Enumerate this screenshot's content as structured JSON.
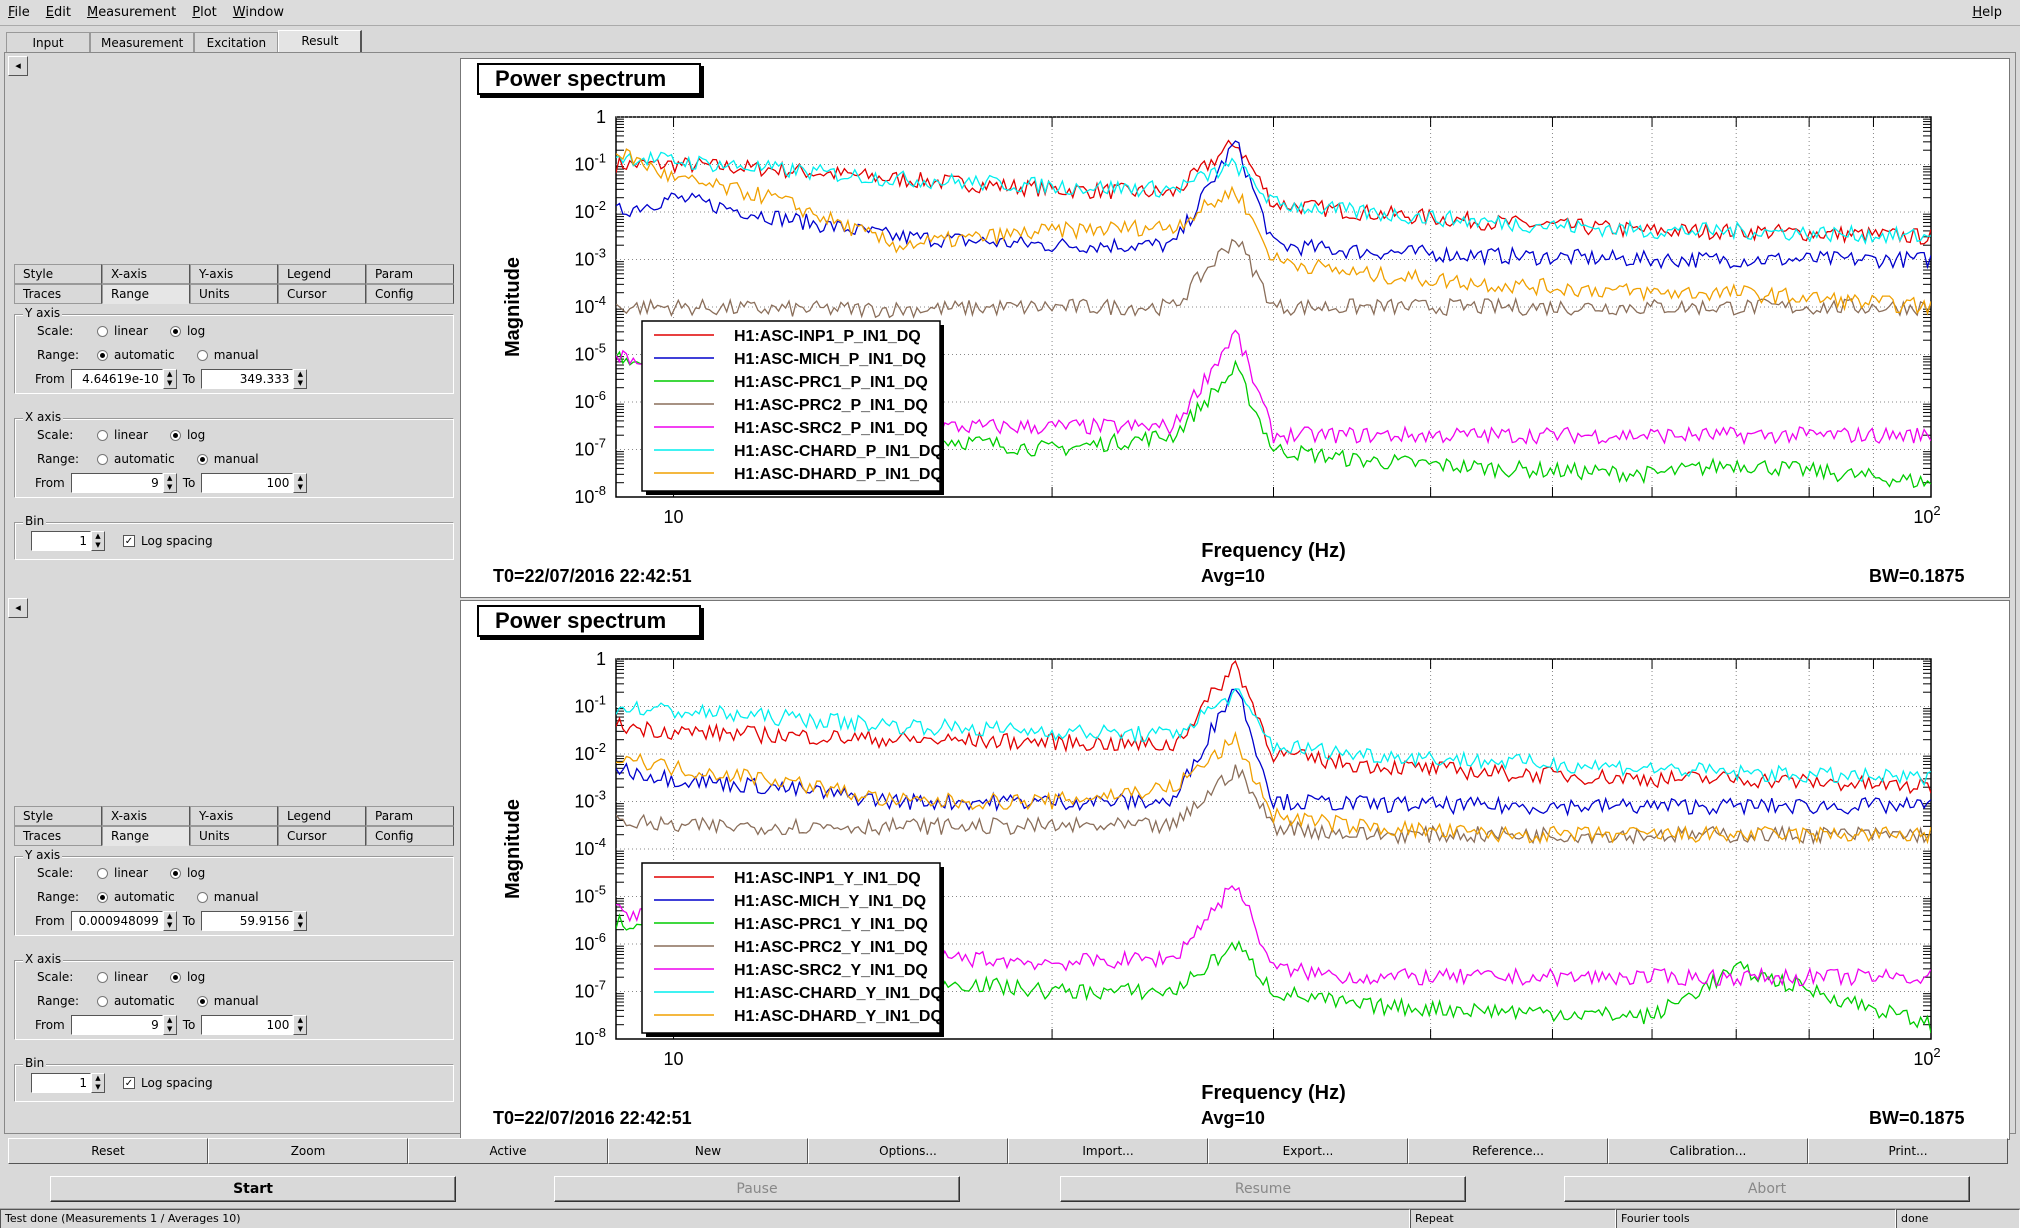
{
  "menu": {
    "file": "File",
    "edit": "Edit",
    "measurement": "Measurement",
    "plot": "Plot",
    "window": "Window",
    "help": "Help"
  },
  "main_tabs": [
    "Input",
    "Measurement",
    "Excitation",
    "Result"
  ],
  "sub_tabs_row1": [
    "Style",
    "X-axis",
    "Y-axis",
    "Legend",
    "Param"
  ],
  "sub_tabs_row2": [
    "Traces",
    "Range",
    "Units",
    "Cursor",
    "Config"
  ],
  "option_labels": {
    "y_axis": "Y axis",
    "x_axis": "X axis",
    "bin": "Bin",
    "scale": "Scale:",
    "range": "Range:",
    "from": "From",
    "to": "To",
    "linear": "linear",
    "log": "log",
    "automatic": "automatic",
    "manual": "manual",
    "log_spacing": "Log spacing"
  },
  "panels": [
    {
      "y_from": "4.64619e-10",
      "y_to": "349.333",
      "x_from": "9",
      "x_to": "100",
      "bin": "1",
      "y_scale": "log",
      "y_range": "automatic",
      "x_scale": "log",
      "x_range": "manual",
      "log_spacing": true
    },
    {
      "y_from": "0.000948099",
      "y_to": "59.9156",
      "x_from": "9",
      "x_to": "100",
      "bin": "1",
      "y_scale": "log",
      "y_range": "automatic",
      "x_scale": "log",
      "x_range": "manual",
      "log_spacing": true
    }
  ],
  "plots": [
    {
      "title": "Power spectrum",
      "xlabel": "Frequency (Hz)",
      "ylabel": "Magnitude",
      "t0": "T0=22/07/2016 22:42:51",
      "avg": "Avg=10",
      "bw": "BW=0.1875",
      "legend": [
        "H1:ASC-INP1_P_IN1_DQ",
        "H1:ASC-MICH_P_IN1_DQ",
        "H1:ASC-PRC1_P_IN1_DQ",
        "H1:ASC-PRC2_P_IN1_DQ",
        "H1:ASC-SRC2_P_IN1_DQ",
        "H1:ASC-CHARD_P_IN1_DQ",
        "H1:ASC-DHARD_P_IN1_DQ"
      ]
    },
    {
      "title": "Power spectrum",
      "xlabel": "Frequency (Hz)",
      "ylabel": "Magnitude",
      "t0": "T0=22/07/2016 22:42:51",
      "avg": "Avg=10",
      "bw": "BW=0.1875",
      "legend": [
        "H1:ASC-INP1_Y_IN1_DQ",
        "H1:ASC-MICH_Y_IN1_DQ",
        "H1:ASC-PRC1_Y_IN1_DQ",
        "H1:ASC-PRC2_Y_IN1_DQ",
        "H1:ASC-SRC2_Y_IN1_DQ",
        "H1:ASC-CHARD_Y_IN1_DQ",
        "H1:ASC-DHARD_Y_IN1_DQ"
      ]
    }
  ],
  "series_colors": [
    "#e00000",
    "#0000cc",
    "#00cc00",
    "#8a6e5a",
    "#ee00ee",
    "#00eeee",
    "#f0a000"
  ],
  "chart_data": [
    {
      "type": "line",
      "title": "Power spectrum",
      "xlabel": "Frequency (Hz)",
      "ylabel": "Magnitude",
      "x_scale": "log",
      "y_scale": "log",
      "xlim": [
        9,
        100
      ],
      "ylim": [
        1e-08,
        1
      ],
      "grid": true,
      "legend_position": "bottom-left",
      "x_ticks": [
        "10",
        "10^2"
      ],
      "y_ticks": [
        "10^-8",
        "10^-7",
        "10^-6",
        "10^-5",
        "10^-4",
        "10^-3",
        "10^-2",
        "10^-1",
        "1"
      ],
      "x": [
        9,
        10,
        12,
        15,
        20,
        25,
        28,
        30,
        35,
        45,
        60,
        70,
        100
      ],
      "series": [
        {
          "name": "H1:ASC-INP1_P_IN1_DQ",
          "values": [
            0.1,
            0.1,
            0.08,
            0.05,
            0.03,
            0.025,
            0.3,
            0.015,
            0.01,
            0.006,
            0.004,
            0.004,
            0.003
          ]
        },
        {
          "name": "H1:ASC-MICH_P_IN1_DQ",
          "values": [
            0.01,
            0.02,
            0.008,
            0.003,
            0.002,
            0.002,
            0.3,
            0.002,
            0.0015,
            0.0012,
            0.001,
            0.001,
            0.001
          ]
        },
        {
          "name": "H1:ASC-PRC1_P_IN1_DQ",
          "values": [
            1e-05,
            5e-06,
            5e-07,
            2e-07,
            1e-07,
            2e-07,
            5e-06,
            1e-07,
            6e-08,
            4e-08,
            3e-08,
            5e-08,
            2e-08
          ]
        },
        {
          "name": "H1:ASC-PRC2_P_IN1_DQ",
          "values": [
            0.0001,
            0.0001,
            9e-05,
            9e-05,
            0.0001,
            0.0001,
            0.003,
            0.0001,
            0.0001,
            0.0001,
            0.0001,
            0.0001,
            0.0001
          ]
        },
        {
          "name": "H1:ASC-SRC2_P_IN1_DQ",
          "values": [
            1e-05,
            3e-06,
            5e-07,
            3e-07,
            3e-07,
            3e-07,
            3e-05,
            2e-07,
            2e-07,
            2e-07,
            2e-07,
            2e-07,
            2e-07
          ]
        },
        {
          "name": "H1:ASC-CHARD_P_IN1_DQ",
          "values": [
            0.15,
            0.12,
            0.08,
            0.05,
            0.035,
            0.03,
            0.1,
            0.015,
            0.01,
            0.006,
            0.004,
            0.004,
            0.003
          ]
        },
        {
          "name": "H1:ASC-DHARD_P_IN1_DQ",
          "values": [
            0.2,
            0.05,
            0.02,
            0.002,
            0.004,
            0.005,
            0.03,
            0.001,
            0.0005,
            0.0003,
            0.0002,
            0.0002,
            0.0001
          ]
        }
      ]
    },
    {
      "type": "line",
      "title": "Power spectrum",
      "xlabel": "Frequency (Hz)",
      "ylabel": "Magnitude",
      "x_scale": "log",
      "y_scale": "log",
      "xlim": [
        9,
        100
      ],
      "ylim": [
        1e-08,
        1
      ],
      "grid": true,
      "legend_position": "bottom-left",
      "x_ticks": [
        "10",
        "10^2"
      ],
      "y_ticks": [
        "10^-8",
        "10^-7",
        "10^-6",
        "10^-5",
        "10^-4",
        "10^-3",
        "10^-2",
        "10^-1",
        "1"
      ],
      "x": [
        9,
        10,
        12,
        15,
        20,
        25,
        28,
        30,
        35,
        45,
        60,
        70,
        100
      ],
      "series": [
        {
          "name": "H1:ASC-INP1_Y_IN1_DQ",
          "values": [
            0.04,
            0.03,
            0.025,
            0.02,
            0.018,
            0.015,
            0.8,
            0.01,
            0.006,
            0.004,
            0.003,
            0.003,
            0.002
          ]
        },
        {
          "name": "H1:ASC-MICH_Y_IN1_DQ",
          "values": [
            0.005,
            0.003,
            0.002,
            0.001,
            0.001,
            0.001,
            0.3,
            0.001,
            0.0009,
            0.0008,
            0.0008,
            0.0008,
            0.0008
          ]
        },
        {
          "name": "H1:ASC-PRC1_Y_IN1_DQ",
          "values": [
            3e-06,
            1e-06,
            3e-07,
            2e-07,
            1e-07,
            1e-07,
            1e-06,
            1e-07,
            5e-08,
            4e-08,
            3e-08,
            3e-07,
            2e-08
          ]
        },
        {
          "name": "H1:ASC-PRC2_Y_IN1_DQ",
          "values": [
            0.0004,
            0.0003,
            0.0003,
            0.0003,
            0.0003,
            0.0003,
            0.005,
            0.0003,
            0.0002,
            0.0002,
            0.0002,
            0.0002,
            0.0002
          ]
        },
        {
          "name": "H1:ASC-SRC2_Y_IN1_DQ",
          "values": [
            5e-06,
            3e-06,
            1e-06,
            6e-07,
            4e-07,
            5e-07,
            2e-05,
            3e-07,
            2e-07,
            2e-07,
            2e-07,
            2e-07,
            2e-07
          ]
        },
        {
          "name": "H1:ASC-CHARD_Y_IN1_DQ",
          "values": [
            0.1,
            0.08,
            0.06,
            0.04,
            0.03,
            0.025,
            0.2,
            0.015,
            0.01,
            0.007,
            0.005,
            0.004,
            0.003
          ]
        },
        {
          "name": "H1:ASC-DHARD_Y_IN1_DQ",
          "values": [
            0.01,
            0.005,
            0.003,
            0.001,
            0.001,
            0.002,
            0.02,
            0.0005,
            0.0003,
            0.0002,
            0.0002,
            0.0002,
            0.0002
          ]
        }
      ]
    }
  ],
  "toolbar": [
    "Reset",
    "Zoom",
    "Active",
    "New",
    "Options...",
    "Import...",
    "Export...",
    "Reference...",
    "Calibration...",
    "Print..."
  ],
  "actions": {
    "start": "Start",
    "pause": "Pause",
    "resume": "Resume",
    "abort": "Abort"
  },
  "status": {
    "message": "Test done (Measurements 1 / Averages 10)",
    "repeat": "Repeat",
    "tools": "Fourier tools",
    "state": "done"
  }
}
